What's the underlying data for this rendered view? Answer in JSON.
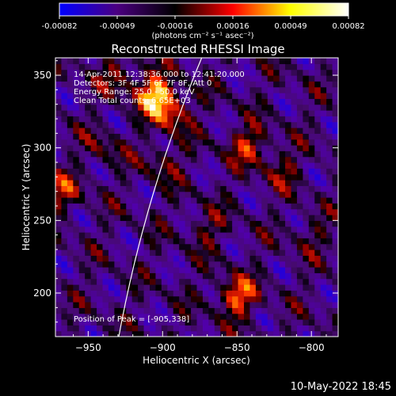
{
  "colorbar": {
    "ticks": [
      "-0.00082",
      "-0.00049",
      "-0.00016",
      "0.00016",
      "0.00049",
      "0.00082"
    ],
    "units": "(photons cm⁻² s⁻¹ asec⁻²)",
    "range": [
      -0.00082,
      0.00082
    ],
    "colors": [
      "#0000ff",
      "#4b0080",
      "#000000",
      "#ff0000",
      "#ffff00",
      "#ffffff"
    ]
  },
  "annotations": {
    "time": "14-Apr-2011 12:38:36.000 to 12:41:20.000",
    "detectors": "Detectors: 3F 4F 5F 6F 7F 8F, Att 0",
    "energy": "Energy Range: 25.0 - 50.0 keV",
    "clean": "Clean     Total counts: 6.65E+03",
    "peak": "Position of Peak = [-905,338]"
  },
  "footer": {
    "date": "10-May-2022 18:45"
  },
  "chart_data": {
    "type": "heatmap",
    "title": "Reconstructed RHESSI Image",
    "xlabel": "Heliocentric X (arcsec)",
    "ylabel": "Heliocentric Y (arcsec)",
    "xlim": [
      -972,
      -782
    ],
    "ylim": [
      170,
      362
    ],
    "x_ticks": [
      -950,
      -900,
      -850,
      -800
    ],
    "y_ticks": [
      200,
      250,
      300,
      350
    ],
    "x_tick_labels": [
      "−950",
      "−900",
      "−850",
      "−800"
    ],
    "y_tick_labels": [
      "200",
      "250",
      "300",
      "350"
    ],
    "limb": true,
    "peak": [
      -905,
      338
    ],
    "sources": [
      {
        "x": -905,
        "y": 338,
        "value": 0.00082
      },
      {
        "x": -895,
        "y": 325,
        "value": 0.0006
      },
      {
        "x": -850,
        "y": 198,
        "value": 0.0007
      },
      {
        "x": -842,
        "y": 302,
        "value": 0.0005
      },
      {
        "x": -968,
        "y": 270,
        "value": 0.00045
      },
      {
        "x": -930,
        "y": 350,
        "value": 0.00035
      },
      {
        "x": -900,
        "y": 290,
        "value": 0.0003
      },
      {
        "x": -820,
        "y": 285,
        "value": 0.0003
      },
      {
        "x": -940,
        "y": 300,
        "value": 0.00025
      },
      {
        "x": -870,
        "y": 245,
        "value": 0.00028
      },
      {
        "x": -800,
        "y": 240,
        "value": 0.00022
      }
    ]
  }
}
